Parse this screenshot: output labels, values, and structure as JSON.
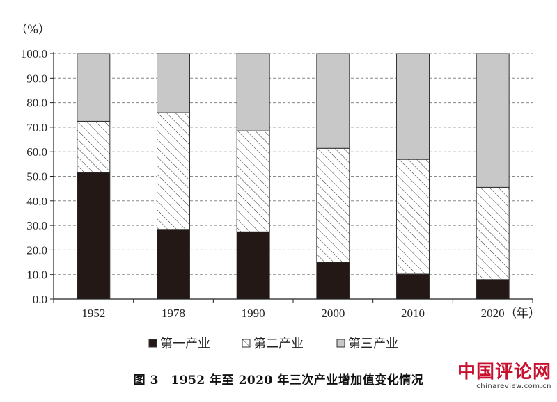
{
  "chart_data": {
    "type": "bar",
    "stacked": true,
    "categories": [
      "1952",
      "1978",
      "1990",
      "2000",
      "2010",
      "2020"
    ],
    "series": [
      {
        "name": "第一产业",
        "values": [
          51.6,
          28.4,
          27.4,
          15.1,
          10.2,
          8.0
        ],
        "pattern": "solid",
        "color": "#231815"
      },
      {
        "name": "第二产业",
        "values": [
          20.8,
          47.5,
          41.1,
          46.3,
          46.7,
          37.5
        ],
        "pattern": "hatch",
        "color": "#ffffff"
      },
      {
        "name": "第三产业",
        "values": [
          27.6,
          24.1,
          31.5,
          38.6,
          43.1,
          54.5
        ],
        "pattern": "solid",
        "color": "#c8c8c8"
      }
    ],
    "ylim": [
      0,
      100
    ],
    "yticks": [
      "0.0",
      "10.0",
      "20.0",
      "30.0",
      "40.0",
      "50.0",
      "60.0",
      "70.0",
      "80.0",
      "90.0",
      "100.0"
    ],
    "y_unit": "（%）",
    "x_unit": "（年）",
    "grid": true,
    "legend_position": "bottom"
  },
  "caption": "图 3　1952 年至 2020 年三次产业增加值变化情况",
  "watermark": {
    "main": "中国评论网",
    "url": "chinareview.com.cn"
  }
}
